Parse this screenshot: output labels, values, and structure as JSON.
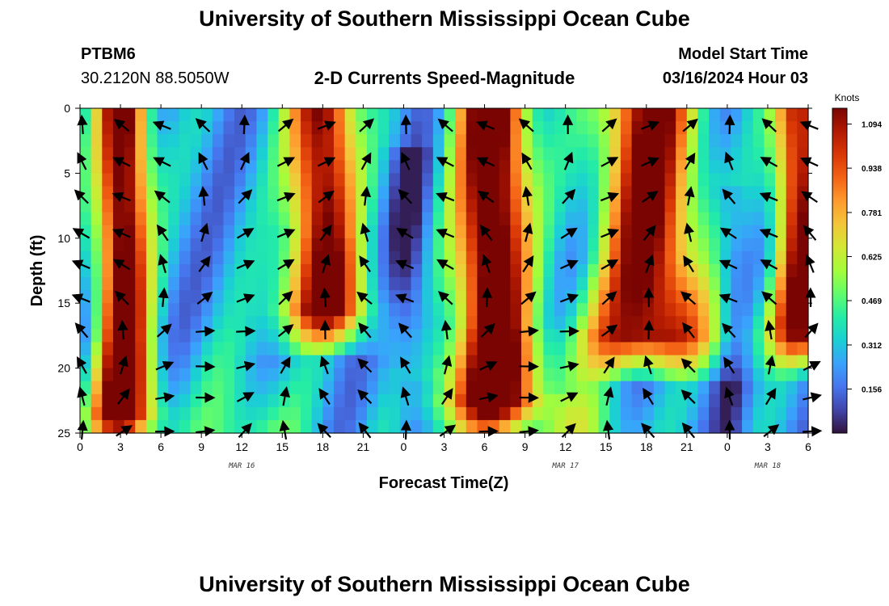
{
  "title_top": "University of Southern Mississippi Ocean Cube",
  "title_bottom": "University of Southern Mississippi Ocean Cube",
  "station": {
    "id": "PTBM6",
    "coords": "30.2120N  88.5050W"
  },
  "subtitle": "2-D Currents Speed-Magnitude",
  "model_start": {
    "label": "Model Start Time",
    "value": "03/16/2024 Hour 03"
  },
  "chart_data": {
    "type": "heatmap",
    "title": "2-D Currents Speed-Magnitude",
    "xlabel": "Forecast Time(Z)",
    "ylabel": "Depth (ft)",
    "x_tick_labels": [
      "0",
      "3",
      "6",
      "9",
      "12",
      "15",
      "18",
      "21",
      "0",
      "3",
      "6",
      "9",
      "12",
      "15",
      "18",
      "21",
      "0",
      "3",
      "6"
    ],
    "x_tick_hours": [
      0,
      3,
      6,
      9,
      12,
      15,
      18,
      21,
      24,
      27,
      30,
      33,
      36,
      39,
      42,
      45,
      48,
      51,
      54
    ],
    "xlim": [
      0,
      54
    ],
    "date_labels": [
      {
        "text": "MAR 16",
        "hour": 12
      },
      {
        "text": "MAR 17",
        "hour": 36
      },
      {
        "text": "MAR 18",
        "hour": 51
      }
    ],
    "y_ticks": [
      0,
      5,
      10,
      15,
      20,
      25
    ],
    "ylim": [
      0,
      25
    ],
    "y_inverted": true,
    "colorbar": {
      "title": "Knots",
      "tick_labels": [
        "1.094",
        "0.938",
        "0.781",
        "0.625",
        "0.469",
        "0.312",
        "0.156"
      ],
      "tick_values": [
        1.094,
        0.938,
        0.781,
        0.625,
        0.469,
        0.312,
        0.156
      ],
      "range": [
        0,
        1.15
      ],
      "colors": [
        "#30123b",
        "#4145ab",
        "#4675ed",
        "#39a2fc",
        "#1bcfd4",
        "#24eca6",
        "#61fc6c",
        "#a4fc3b",
        "#d1e834",
        "#f3c63a",
        "#fe9b2d",
        "#f36315",
        "#d93806",
        "#b11901",
        "#7a0402"
      ]
    },
    "grid": false,
    "legend": "right"
  }
}
